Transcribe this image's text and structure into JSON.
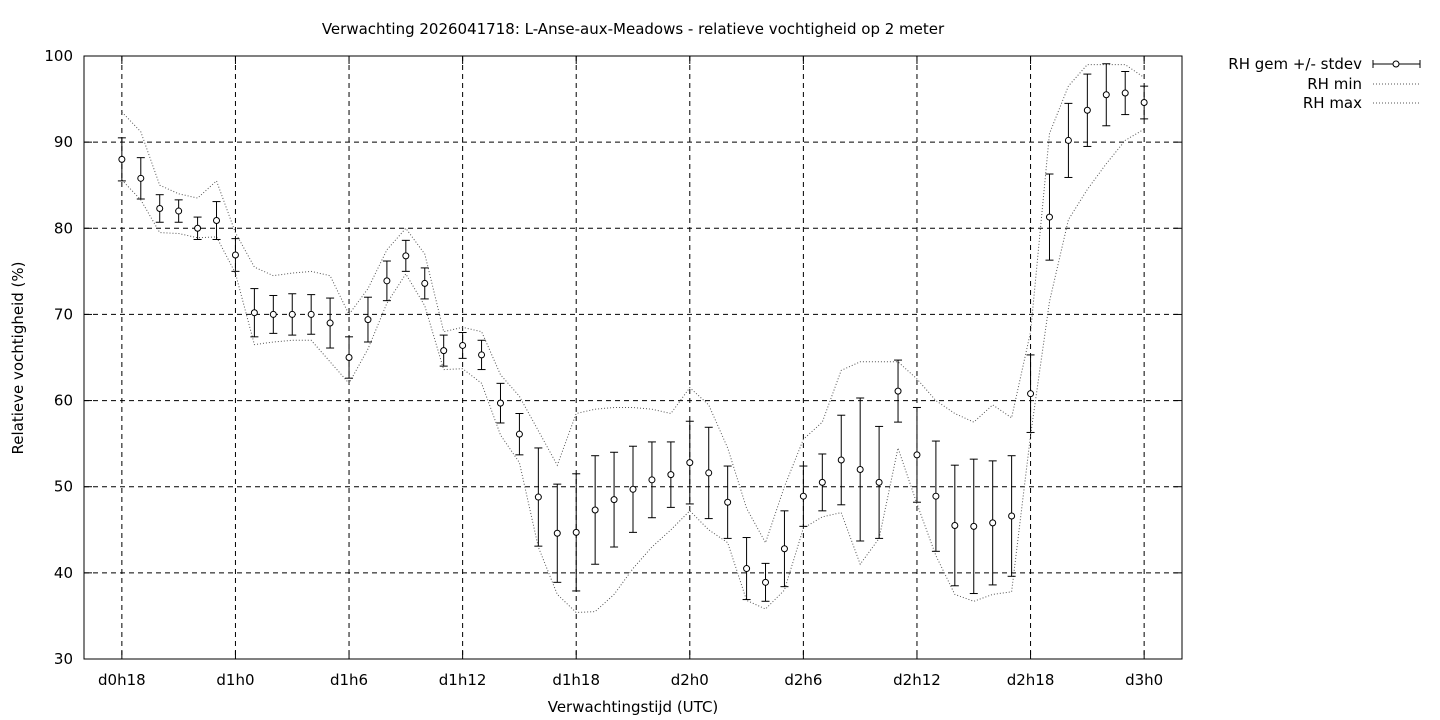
{
  "chart_data": {
    "type": "line",
    "title": "Verwachting 2026041718: L-Anse-aux-Meadows - relatieve vochtigheid op 2 meter",
    "xlabel": "Verwachtingstijd (UTC)",
    "ylabel": "Relatieve vochtigheid (%)",
    "ylim": [
      30,
      100
    ],
    "yticks": [
      "30",
      "40",
      "50",
      "60",
      "70",
      "80",
      "90",
      "100"
    ],
    "xlim": [
      -2,
      56
    ],
    "xtick_positions": [
      0,
      6,
      12,
      18,
      24,
      30,
      36,
      42,
      48,
      54
    ],
    "xtick_labels": [
      "d0h18",
      "d1h0",
      "d1h6",
      "d1h12",
      "d1h18",
      "d2h0",
      "d2h6",
      "d2h12",
      "d2h18",
      "d3h0"
    ],
    "grid": true,
    "legend_position": "outside-top-right",
    "x": [
      0,
      1,
      2,
      3,
      4,
      5,
      6,
      7,
      8,
      9,
      10,
      11,
      12,
      13,
      14,
      15,
      16,
      17,
      18,
      19,
      20,
      21,
      22,
      23,
      24,
      25,
      26,
      27,
      28,
      29,
      30,
      31,
      32,
      33,
      34,
      35,
      36,
      37,
      38,
      39,
      40,
      41,
      42,
      43,
      44,
      45,
      46,
      47,
      48,
      49,
      50,
      51,
      52,
      53,
      54
    ],
    "series": [
      {
        "name": "RH gem +/- stdev",
        "style": "errorbars-circles",
        "values": [
          88.0,
          85.8,
          82.3,
          82.0,
          80.0,
          80.9,
          76.9,
          70.2,
          70.0,
          70.0,
          70.0,
          69.0,
          65.0,
          69.4,
          73.9,
          76.8,
          73.6,
          65.8,
          66.4,
          65.3,
          59.7,
          56.1,
          48.8,
          44.6,
          44.7,
          47.3,
          48.5,
          49.7,
          50.8,
          51.4,
          52.8,
          51.6,
          48.2,
          40.5,
          38.9,
          42.8,
          48.9,
          50.5,
          53.1,
          52.0,
          50.5,
          61.1,
          53.7,
          48.9,
          45.5,
          45.4,
          45.8,
          46.6,
          60.8,
          81.3,
          90.2,
          93.7,
          95.5,
          95.7,
          94.6
        ],
        "stdev": [
          2.5,
          2.4,
          1.6,
          1.3,
          1.3,
          2.2,
          1.9,
          2.8,
          2.2,
          2.4,
          2.3,
          2.9,
          2.4,
          2.6,
          2.3,
          1.8,
          1.8,
          1.8,
          1.5,
          1.7,
          2.3,
          2.4,
          5.7,
          5.7,
          6.8,
          6.3,
          5.5,
          5.0,
          4.4,
          3.8,
          4.8,
          5.3,
          4.2,
          3.6,
          2.2,
          4.4,
          3.5,
          3.3,
          5.2,
          8.3,
          6.5,
          3.6,
          5.5,
          6.4,
          7.0,
          7.8,
          7.2,
          7.0,
          4.5,
          5.0,
          4.3,
          4.2,
          3.6,
          2.5,
          1.9
        ]
      },
      {
        "name": "RH min",
        "style": "dotted",
        "values": [
          85.6,
          83.3,
          79.5,
          79.4,
          78.9,
          79.0,
          74.8,
          66.5,
          66.8,
          67.0,
          67.0,
          64.5,
          62.0,
          66.0,
          71.3,
          74.7,
          71.0,
          63.6,
          63.7,
          62.0,
          56.0,
          52.8,
          43.0,
          37.5,
          35.4,
          35.5,
          37.5,
          40.5,
          43.0,
          45.0,
          47.2,
          45.0,
          43.5,
          36.8,
          35.8,
          38.0,
          45.2,
          46.5,
          47.0,
          41.0,
          44.0,
          54.5,
          48.0,
          42.0,
          37.5,
          36.7,
          37.5,
          37.8,
          56.0,
          71.5,
          81.0,
          84.5,
          87.5,
          90.2,
          91.5
        ]
      },
      {
        "name": "RH max",
        "style": "dotted",
        "values": [
          93.5,
          91.2,
          85.0,
          84.0,
          83.5,
          85.5,
          79.5,
          75.5,
          74.5,
          74.8,
          75.0,
          74.5,
          70.0,
          73.0,
          77.5,
          80.0,
          77.0,
          68.0,
          68.5,
          68.0,
          63.0,
          60.5,
          56.5,
          52.5,
          58.5,
          59.0,
          59.2,
          59.2,
          59.0,
          58.5,
          61.5,
          59.5,
          54.5,
          47.5,
          43.5,
          50.0,
          55.5,
          57.5,
          63.5,
          64.5,
          64.5,
          64.5,
          62.5,
          60.0,
          58.5,
          57.5,
          59.5,
          58.0,
          68.0,
          91.0,
          96.5,
          99.0,
          99.0,
          99.0,
          97.5
        ]
      }
    ]
  }
}
